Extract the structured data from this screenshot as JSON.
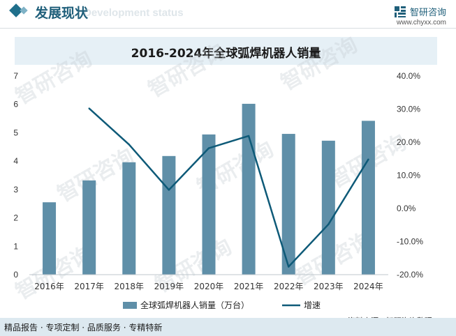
{
  "header": {
    "section_title": "发展现状",
    "section_subtitle": "Development status",
    "brand_name": "智研咨询",
    "brand_url": "www.chyxx.com"
  },
  "watermark": {
    "brand_text": "智研咨询"
  },
  "chart_data": {
    "type": "bar",
    "title": "2016-2024年全球弧焊机器人销量",
    "categories": [
      "2016年",
      "2017年",
      "2018年",
      "2019年",
      "2020年",
      "2021年",
      "2022年",
      "2023年",
      "2024年"
    ],
    "series": [
      {
        "name": "全球弧焊机器人销量（万台）",
        "type": "bar",
        "axis": "left",
        "color": "#5f8fa8",
        "values": [
          2.55,
          3.32,
          3.96,
          4.18,
          4.94,
          6.02,
          4.96,
          4.72,
          5.42
        ]
      },
      {
        "name": "增速",
        "type": "line",
        "axis": "right",
        "color": "#0e5a78",
        "values": [
          null,
          30.2,
          19.3,
          5.6,
          18.2,
          21.9,
          -17.6,
          -4.8,
          14.8
        ]
      }
    ],
    "y_left": {
      "min": 0,
      "max": 7,
      "ticks": [
        "0",
        "1",
        "2",
        "3",
        "4",
        "5",
        "6",
        "7"
      ]
    },
    "y_right": {
      "min": -20,
      "max": 40,
      "ticks": [
        "-20.0%",
        "-10.0%",
        "0.0%",
        "10.0%",
        "20.0%",
        "30.0%",
        "40.0%"
      ]
    },
    "grid": false,
    "legend_position": "bottom"
  },
  "footer": {
    "text": "精品报告 · 专项定制 · 品质服务 · 专精特新",
    "source": "资料来源：智研咨询整理"
  }
}
